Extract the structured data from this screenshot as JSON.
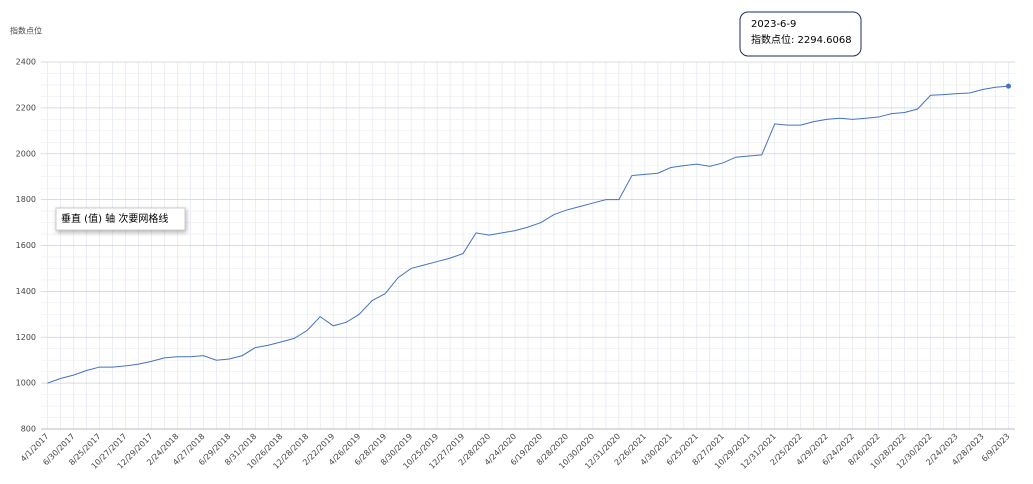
{
  "chart_data": {
    "type": "line",
    "y_label": "指数点位",
    "categories": [
      "4/1/2017",
      null,
      "6/30/2017",
      null,
      "8/25/2017",
      null,
      "10/27/2017",
      null,
      "12/29/2017",
      null,
      "2/24/2018",
      null,
      "4/27/2018",
      null,
      "6/29/2018",
      null,
      "8/31/2018",
      null,
      "10/26/2018",
      null,
      "12/28/2018",
      null,
      "2/22/2019",
      null,
      "4/26/2019",
      null,
      "6/28/2019",
      null,
      "8/30/2019",
      null,
      "10/25/2019",
      null,
      "12/27/2019",
      null,
      "2/28/2020",
      null,
      "4/24/2020",
      null,
      "6/19/2020",
      null,
      "8/28/2020",
      null,
      "10/30/2020",
      null,
      "12/31/2020",
      null,
      "2/26/2021",
      null,
      "4/30/2021",
      null,
      "6/25/2021",
      null,
      "8/27/2021",
      null,
      "10/29/2021",
      null,
      "12/31/2021",
      null,
      "2/25/2022",
      null,
      "4/29/2022",
      null,
      "6/24/2022",
      null,
      "8/26/2022",
      null,
      "10/28/2022",
      null,
      "12/30/2022",
      null,
      "2/24/2023",
      null,
      "4/28/2023",
      null,
      "6/9/2023"
    ],
    "series": [
      {
        "name": "指数点位",
        "color": "#4472c4",
        "values": [
          1000,
          1020,
          1035,
          1055,
          1070,
          1070,
          1075,
          1083,
          1095,
          1110,
          1115,
          1115,
          1120,
          1100,
          1105,
          1120,
          1155,
          1165,
          1180,
          1195,
          1230,
          1290,
          1250,
          1265,
          1300,
          1360,
          1390,
          1460,
          1500,
          1515,
          1530,
          1545,
          1565,
          1655,
          1645,
          1655,
          1665,
          1680,
          1700,
          1735,
          1755,
          1770,
          1785,
          1800,
          1800,
          1905,
          1910,
          1915,
          1940,
          1948,
          1955,
          1945,
          1960,
          1985,
          1990,
          1995,
          2130,
          2125,
          2125,
          2140,
          2150,
          2155,
          2150,
          2155,
          2160,
          2175,
          2180,
          2195,
          2255,
          2258,
          2262,
          2265,
          2280,
          2290,
          2294.6068
        ]
      }
    ],
    "ylim": [
      800,
      2400
    ],
    "yticks": [
      800,
      1000,
      1200,
      1400,
      1600,
      1800,
      2000,
      2200,
      2400
    ],
    "grid": true,
    "tooltip": {
      "date": "2023-6-9",
      "text": "指数点位: 2294.6068"
    },
    "hover_label": "垂直 (值) 轴 次要网格线"
  }
}
